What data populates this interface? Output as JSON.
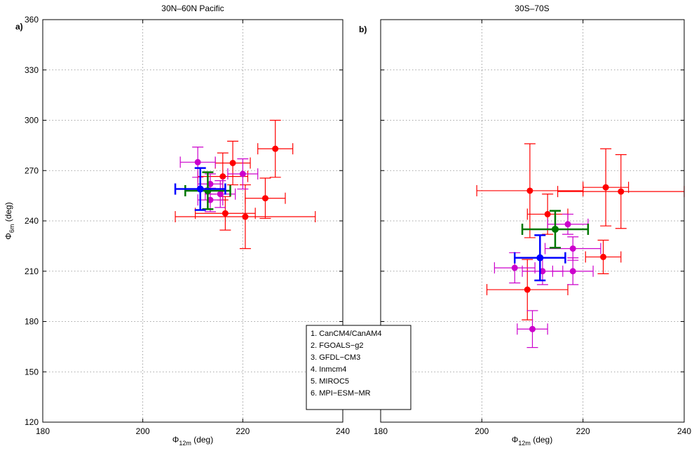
{
  "chart_data": [
    {
      "type": "scatter",
      "panel_label": "a)",
      "title": "30N–60N Pacific",
      "xlabel_main": "Φ",
      "xlabel_sub": "12m",
      "xlabel_unit": " (deg)",
      "ylabel_main": "Φ",
      "ylabel_sub": "6m",
      "ylabel_unit": " (deg)",
      "xlim": [
        180,
        240
      ],
      "ylim": [
        120,
        360
      ],
      "xticks": [
        180,
        200,
        220,
        240
      ],
      "yticks": [
        120,
        150,
        180,
        210,
        240,
        270,
        300,
        330,
        360
      ],
      "grid": true,
      "points": [
        {
          "color": "#ff0000",
          "x": 226.5,
          "y": 283,
          "xerr": 3.5,
          "yerr": 17,
          "lw": 1.2
        },
        {
          "color": "#ff0000",
          "x": 218,
          "y": 274.5,
          "xerr": 3.5,
          "yerr": 13,
          "lw": 1.2
        },
        {
          "color": "#ff0000",
          "x": 216,
          "y": 266.5,
          "xerr": 5,
          "yerr": 14,
          "lw": 1.2
        },
        {
          "color": "#ff0000",
          "x": 224.5,
          "y": 253.5,
          "xerr": 4,
          "yerr": 12,
          "lw": 1.2
        },
        {
          "color": "#ff0000",
          "x": 216.5,
          "y": 244.5,
          "xerr": 6,
          "yerr": 10,
          "lw": 1.2
        },
        {
          "color": "#ff0000",
          "x": 220.5,
          "y": 242.5,
          "xerr": 14,
          "yerr": 19,
          "lw": 1.2
        },
        {
          "color": "#cc00cc",
          "x": 211,
          "y": 275,
          "xerr": 3.5,
          "yerr": 9,
          "lw": 1.2
        },
        {
          "color": "#cc00cc",
          "x": 220,
          "y": 268,
          "xerr": 3,
          "yerr": 9,
          "lw": 1.2
        },
        {
          "color": "#cc00cc",
          "x": 213.5,
          "y": 262,
          "xerr": 2.5,
          "yerr": 6,
          "lw": 1.2
        },
        {
          "color": "#cc00cc",
          "x": 215.5,
          "y": 256,
          "xerr": 3,
          "yerr": 8,
          "lw": 1.2
        },
        {
          "color": "#cc00cc",
          "x": 213.5,
          "y": 252.5,
          "xerr": 2.5,
          "yerr": 7,
          "lw": 1.2
        },
        {
          "color": "#007700",
          "x": 213,
          "y": 258,
          "xerr": 4.5,
          "yerr": 11,
          "lw": 2.5
        },
        {
          "color": "#0000ff",
          "x": 211.5,
          "y": 259,
          "xerr": 5,
          "yerr": 12.5,
          "lw": 2.5
        }
      ]
    },
    {
      "type": "scatter",
      "panel_label": "b)",
      "title": "30S–70S",
      "xlabel_main": "Φ",
      "xlabel_sub": "12m",
      "xlabel_unit": " (deg)",
      "xlim": [
        180,
        240
      ],
      "ylim": [
        120,
        360
      ],
      "xticks": [
        180,
        200,
        220,
        240
      ],
      "yticks": [
        120,
        150,
        180,
        210,
        240,
        270,
        300,
        330,
        360
      ],
      "grid": true,
      "points": [
        {
          "color": "#ff0000",
          "x": 209.5,
          "y": 258,
          "xerr": 10.5,
          "yerr": 28,
          "lw": 1.2
        },
        {
          "color": "#ff0000",
          "x": 224.5,
          "y": 260,
          "xerr": 4.5,
          "yerr": 23,
          "lw": 1.2
        },
        {
          "color": "#ff0000",
          "x": 227.5,
          "y": 257.5,
          "xerr": 12.5,
          "yerr": 22,
          "lw": 1.2
        },
        {
          "color": "#ff0000",
          "x": 213,
          "y": 244,
          "xerr": 4,
          "yerr": 12,
          "lw": 1.2
        },
        {
          "color": "#ff0000",
          "x": 224,
          "y": 218.5,
          "xerr": 3.5,
          "yerr": 10,
          "lw": 1.2
        },
        {
          "color": "#ff0000",
          "x": 209,
          "y": 199,
          "xerr": 8,
          "yerr": 18,
          "lw": 1.2
        },
        {
          "color": "#cc00cc",
          "x": 217,
          "y": 238,
          "xerr": 4,
          "yerr": 6,
          "lw": 1.2
        },
        {
          "color": "#cc00cc",
          "x": 218,
          "y": 223.5,
          "xerr": 5.5,
          "yerr": 7,
          "lw": 1.2
        },
        {
          "color": "#cc00cc",
          "x": 206.5,
          "y": 212,
          "xerr": 4,
          "yerr": 9,
          "lw": 1.2
        },
        {
          "color": "#cc00cc",
          "x": 212,
          "y": 210,
          "xerr": 4,
          "yerr": 8,
          "lw": 1.2
        },
        {
          "color": "#cc00cc",
          "x": 218,
          "y": 210,
          "xerr": 4,
          "yerr": 8,
          "lw": 1.2
        },
        {
          "color": "#cc00cc",
          "x": 210,
          "y": 175.5,
          "xerr": 3,
          "yerr": 11,
          "lw": 1.2
        },
        {
          "color": "#007700",
          "x": 214.5,
          "y": 235,
          "xerr": 6.5,
          "yerr": 11,
          "lw": 2.5
        },
        {
          "color": "#0000ff",
          "x": 211.5,
          "y": 218,
          "xerr": 5,
          "yerr": 13.5,
          "lw": 2.5
        }
      ]
    }
  ],
  "legend": {
    "entries": [
      "1. CanCM4/CanAM4",
      "2. FGOALS−g2",
      "3. GFDL−CM3",
      "4. Inmcm4",
      "5. MIROC5",
      "6. MPI−ESM−MR"
    ]
  }
}
